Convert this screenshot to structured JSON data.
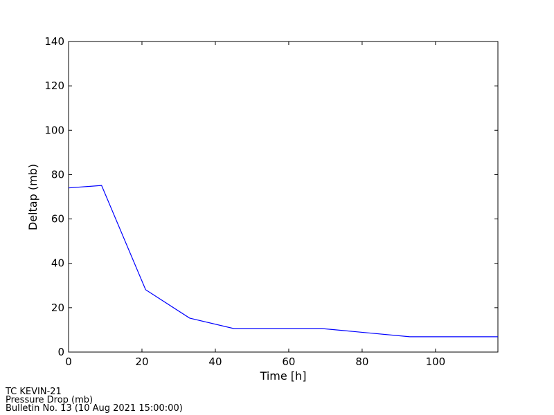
{
  "chart_data": {
    "type": "line",
    "x_label": "Time [h]",
    "y_label": "Deltap (mb)",
    "x": [
      0,
      9,
      21,
      33,
      45,
      69,
      93,
      117
    ],
    "series": [
      {
        "name": "Deltap",
        "color": "#0000ff",
        "values": [
          74,
          75.1,
          28.1,
          15.3,
          10.6,
          10.6,
          6.9,
          6.9
        ]
      }
    ],
    "xlim": [
      0,
      117
    ],
    "ylim": [
      0,
      140
    ],
    "xticks": [
      0,
      20,
      40,
      60,
      80,
      100
    ],
    "yticks": [
      0,
      20,
      40,
      60,
      80,
      100,
      120,
      140
    ],
    "grid": false,
    "annotations": [
      "TC KEVIN-21",
      "Pressure Drop (mb)",
      "Bulletin No. 13 (10 Aug 2021  15:00:00)"
    ]
  }
}
